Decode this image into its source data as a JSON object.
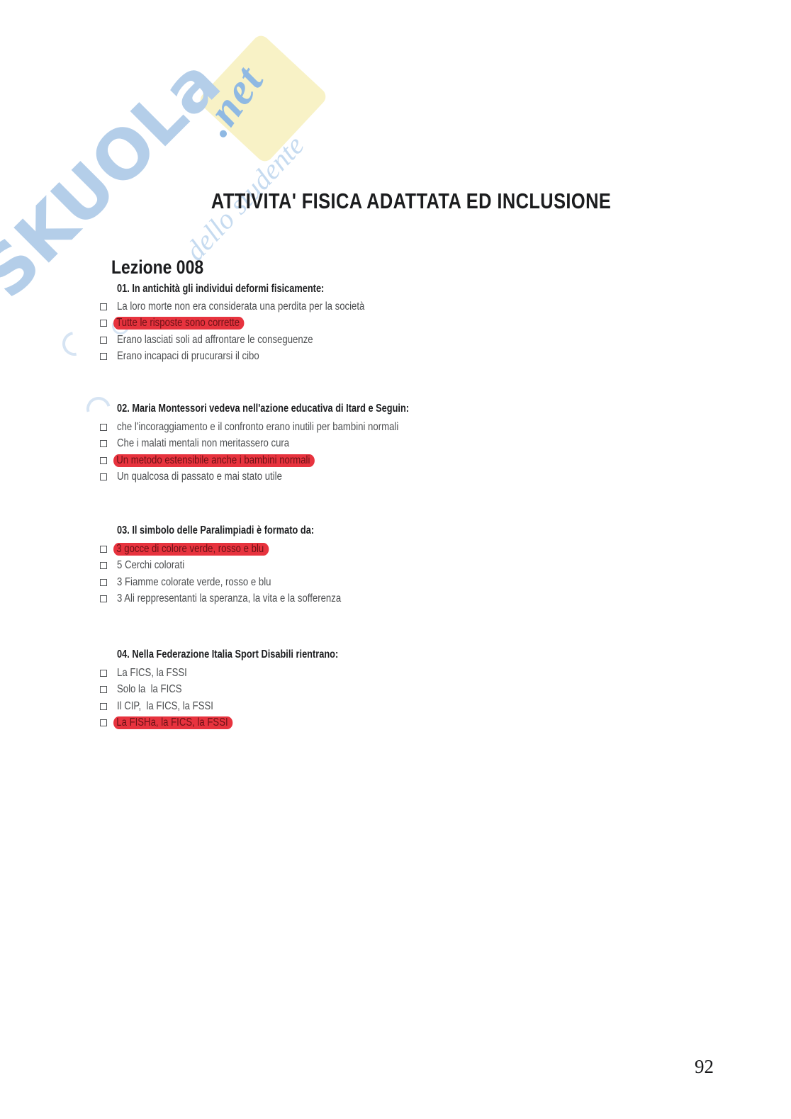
{
  "watermark": {
    "brand": "SKUOLa",
    "domain_suffix": ".net",
    "tagline": "dello studente",
    "brand_color": "#b4cee9",
    "suffix_color": "#8fb9e3",
    "tagline_color": "#c6dbf0",
    "patch_color": "#f8f2c6"
  },
  "document": {
    "title": "ATTIVITA' FISICA ADATTATA ED INCLUSIONE",
    "lesson": "Lezione 008",
    "answer_highlight_color": "#e7333e",
    "questions": [
      {
        "label": "01. In antichità gli individui deformi fisicamente:",
        "options": [
          {
            "text": "La loro morte non era considerata una perdita per la società",
            "highlighted": false
          },
          {
            "text": "Tutte le risposte sono corrette",
            "highlighted": true
          },
          {
            "text": "Erano lasciati soli ad affrontare le conseguenze",
            "highlighted": false
          },
          {
            "text": "Erano incapaci di prucurarsi il cibo",
            "highlighted": false
          }
        ]
      },
      {
        "label": "02. Maria Montessori vedeva nell'azione educativa di Itard e Seguin:",
        "options": [
          {
            "text": "che l'incoraggiamento e il confronto erano inutili per bambini normali",
            "highlighted": false
          },
          {
            "text": "Che i malati mentali non meritassero cura",
            "highlighted": false
          },
          {
            "text": "Un metodo estensibile anche i bambini normali",
            "highlighted": true
          },
          {
            "text": "Un qualcosa di passato e mai stato utile",
            "highlighted": false
          }
        ]
      },
      {
        "label": "03. Il simbolo delle Paralimpiadi è formato da:",
        "options": [
          {
            "text": "3 gocce di colore verde, rosso e blu",
            "highlighted": true
          },
          {
            "text": "5 Cerchi colorati",
            "highlighted": false
          },
          {
            "text": "3 Fiamme colorate verde, rosso e blu",
            "highlighted": false
          },
          {
            "text": "3 Ali reppresentanti la speranza, la vita e la sofferenza",
            "highlighted": false
          }
        ]
      },
      {
        "label": "04. Nella Federazione Italia Sport Disabili rientrano:",
        "options": [
          {
            "text": "La FICS, la FSSI",
            "highlighted": false
          },
          {
            "text": "Solo la  la FICS",
            "highlighted": false
          },
          {
            "text": "Il CIP,  la FICS, la FSSI",
            "highlighted": false
          },
          {
            "text": "La FISHa, la FICS, la FSSI",
            "highlighted": true
          }
        ]
      }
    ]
  },
  "footer": {
    "page_number": "92"
  }
}
